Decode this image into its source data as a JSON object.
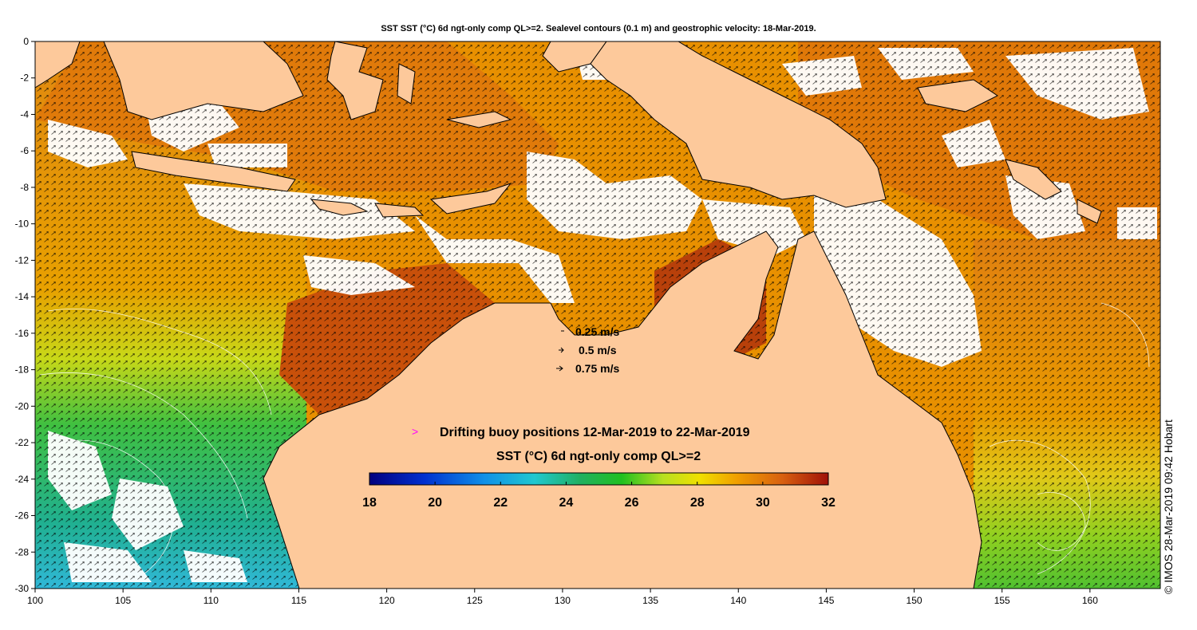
{
  "title": "SST SST (°C) 6d ngt-only comp QL>=2. Sealevel contours (0.1 m) and geostrophic velocity: 18-Mar-2019.",
  "credit": "© IMOS 28-Mar-2019 09:42 Hobart",
  "axes": {
    "x_ticks": [
      "100",
      "105",
      "110",
      "115",
      "120",
      "125",
      "130",
      "135",
      "140",
      "145",
      "150",
      "155",
      "160"
    ],
    "y_ticks": [
      "0",
      "-2",
      "-4",
      "-6",
      "-8",
      "-10",
      "-12",
      "-14",
      "-16",
      "-18",
      "-20",
      "-22",
      "-24",
      "-26",
      "-28",
      "-30"
    ],
    "lon_range": [
      100,
      164
    ],
    "lat_range": [
      -30,
      0
    ]
  },
  "velocity_legend": [
    {
      "label": "0.25 m/s"
    },
    {
      "label": "0.5 m/s"
    },
    {
      "label": "0.75 m/s"
    }
  ],
  "buoy_legend": {
    "label": "Drifting buoy positions 12-Mar-2019 to 22-Mar-2019",
    "color": "#ff00ff"
  },
  "colorbar": {
    "title": "SST (°C) 6d ngt-only comp QL>=2",
    "ticks": [
      "18",
      "20",
      "22",
      "24",
      "26",
      "28",
      "30",
      "32"
    ],
    "range": [
      18,
      32
    ]
  },
  "colors": {
    "land": "#fdc99b",
    "cloud": "#ffffff",
    "sst_warm": "#e07a0a",
    "sst_hot": "#b83a0a",
    "sst_mid": "#e8a000",
    "sst_cool_green": "#30b030",
    "sst_cold_cyan": "#30b8c8"
  }
}
